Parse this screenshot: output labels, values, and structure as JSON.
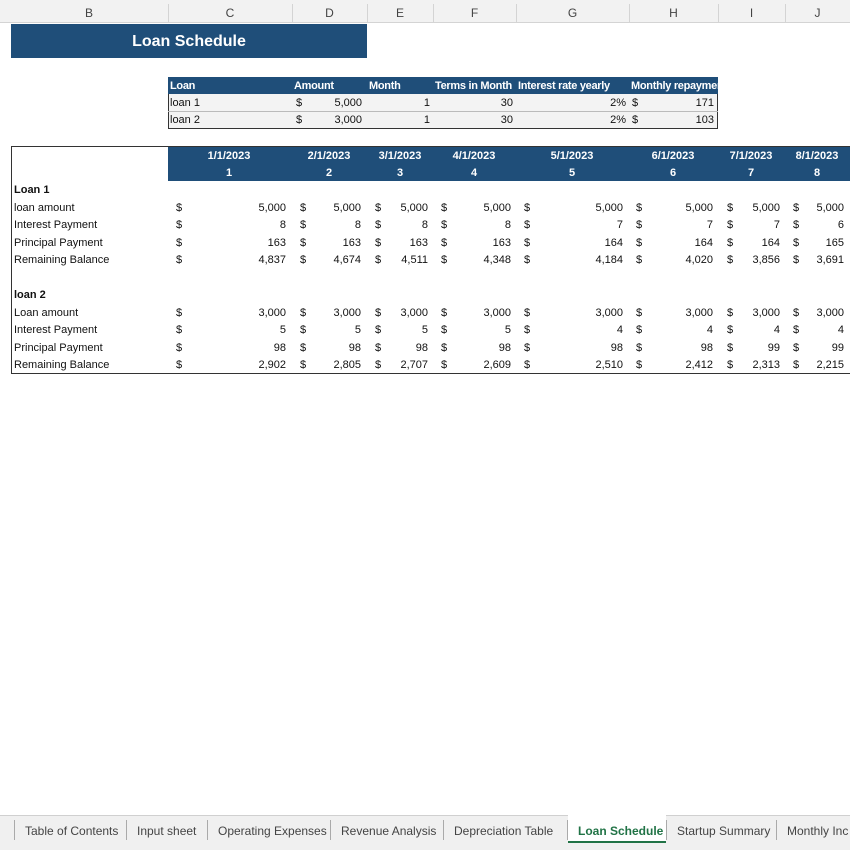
{
  "column_headers": [
    "B",
    "C",
    "D",
    "E",
    "F",
    "G",
    "H",
    "I",
    "J"
  ],
  "title": "Loan Schedule",
  "currency_symbol": "$",
  "summary": {
    "headers": [
      "Loan",
      "Amount",
      "Month",
      "Terms in Month",
      "Interest rate yearly",
      "Monthly repaymen"
    ],
    "rows": [
      [
        "loan 1",
        "5,000",
        1,
        30,
        "2%",
        171
      ],
      [
        "loan 2",
        "3,000",
        1,
        30,
        "2%",
        103
      ]
    ]
  },
  "schedule": {
    "dates": [
      "1/1/2023",
      "2/1/2023",
      "3/1/2023",
      "4/1/2023",
      "5/1/2023",
      "6/1/2023",
      "7/1/2023",
      "8/1/2023"
    ],
    "periods": [
      1,
      2,
      3,
      4,
      5,
      6,
      7,
      8
    ],
    "sections": [
      {
        "name": "Loan 1",
        "rows": [
          {
            "label": "loan amount",
            "values": [
              "5,000",
              "5,000",
              "5,000",
              "5,000",
              "5,000",
              "5,000",
              "5,000",
              "5,000"
            ]
          },
          {
            "label": "Interest Payment",
            "values": [
              "8",
              "8",
              "8",
              "8",
              "7",
              "7",
              "7",
              "6"
            ]
          },
          {
            "label": "Principal Payment",
            "values": [
              "163",
              "163",
              "163",
              "163",
              "164",
              "164",
              "164",
              "165"
            ]
          },
          {
            "label": "Remaining Balance",
            "values": [
              "4,837",
              "4,674",
              "4,511",
              "4,348",
              "4,184",
              "4,020",
              "3,856",
              "3,691"
            ]
          }
        ]
      },
      {
        "name": "loan 2",
        "rows": [
          {
            "label": "Loan amount",
            "values": [
              "3,000",
              "3,000",
              "3,000",
              "3,000",
              "3,000",
              "3,000",
              "3,000",
              "3,000"
            ]
          },
          {
            "label": "Interest Payment",
            "values": [
              "5",
              "5",
              "5",
              "5",
              "4",
              "4",
              "4",
              "4"
            ]
          },
          {
            "label": "Principal Payment",
            "values": [
              "98",
              "98",
              "98",
              "98",
              "98",
              "98",
              "99",
              "99"
            ]
          },
          {
            "label": "Remaining Balance",
            "values": [
              "2,902",
              "2,805",
              "2,707",
              "2,609",
              "2,510",
              "2,412",
              "2,313",
              "2,215"
            ]
          }
        ]
      }
    ]
  },
  "tabs": [
    "Table of Contents",
    "Input sheet",
    "Operating Expenses",
    "Revenue Analysis",
    "Depreciation Table",
    "Loan Schedule",
    "Startup Summary",
    "Monthly Inc"
  ]
}
